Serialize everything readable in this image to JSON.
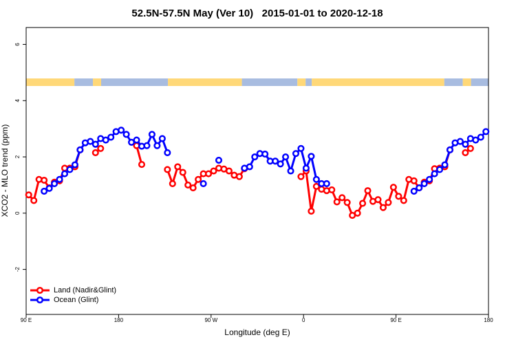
{
  "chart_data": {
    "type": "line",
    "title": "52.5N-57.5N May (Ver 10)   2015-01-01 to 2020-12-18",
    "xlabel": "Longitude (deg E)",
    "ylabel": "XCO2 - MLO trend (ppm)",
    "xlim": [
      90,
      540
    ],
    "ylim": [
      -3.6,
      6.6
    ],
    "xticks": [
      {
        "value": 90,
        "label": "90 E"
      },
      180,
      {
        "value": 270,
        "label": "90 W"
      },
      {
        "value": 360,
        "label": "0"
      },
      {
        "value": 450,
        "label": "90 E"
      },
      {
        "value": 540,
        "label": "180"
      }
    ],
    "yticks": [
      -2,
      0,
      2,
      4,
      6
    ],
    "legend": "bottom-left",
    "x": [
      92.5,
      97.5,
      102.5,
      107.5,
      112.5,
      117.5,
      122.5,
      127.5,
      132.5,
      137.5,
      142.5,
      147.5,
      152.5,
      157.5,
      162.5,
      167.5,
      172.5,
      177.5,
      182.5,
      187.5,
      192.5,
      197.5,
      202.5,
      207.5,
      212.5,
      217.5,
      222.5,
      227.5,
      232.5,
      237.5,
      242.5,
      247.5,
      252.5,
      257.5,
      262.5,
      267.5,
      272.5,
      277.5,
      282.5,
      287.5,
      292.5,
      297.5,
      302.5,
      307.5,
      312.5,
      317.5,
      322.5,
      327.5,
      332.5,
      337.5,
      342.5,
      347.5,
      352.5,
      357.5,
      362.5,
      367.5,
      372.5,
      377.5,
      382.5,
      387.5,
      392.5,
      397.5,
      402.5,
      407.5,
      412.5,
      417.5,
      422.5,
      427.5,
      432.5,
      437.5,
      442.5,
      447.5,
      452.5,
      457.5,
      462.5,
      467.5,
      472.5,
      477.5,
      482.5,
      487.5,
      492.5,
      497.5,
      502.5,
      507.5,
      512.5,
      517.5,
      522.5,
      527.5,
      532.5,
      537.5
    ],
    "series": [
      {
        "name": "Land (Nadir&Glint)",
        "color": "#ff0000",
        "values": [
          0.65,
          0.45,
          1.2,
          1.17,
          0.9,
          1.1,
          1.15,
          1.6,
          1.6,
          1.65,
          2.25,
          null,
          null,
          2.15,
          2.3,
          null,
          null,
          null,
          null,
          null,
          null,
          2.4,
          1.73,
          null,
          null,
          null,
          null,
          1.55,
          1.05,
          1.65,
          1.45,
          1.0,
          0.9,
          1.2,
          1.4,
          1.4,
          1.5,
          1.6,
          1.57,
          1.5,
          1.35,
          1.3,
          1.58,
          null,
          null,
          null,
          null,
          null,
          null,
          null,
          null,
          null,
          null,
          1.3,
          1.5,
          0.07,
          0.95,
          0.85,
          0.8,
          0.83,
          0.4,
          0.55,
          0.38,
          -0.08,
          0.0,
          0.35,
          0.8,
          0.42,
          0.48,
          0.2,
          0.38,
          0.92,
          0.6,
          0.45,
          1.2,
          1.15,
          0.9,
          1.1,
          1.15,
          1.58,
          1.6,
          1.65,
          2.25,
          null,
          null,
          2.15,
          2.3,
          null,
          null,
          null
        ]
      },
      {
        "name": "Ocean (Glint)",
        "color": "#0000ff",
        "values": [
          null,
          null,
          null,
          0.78,
          0.88,
          1.05,
          1.2,
          1.4,
          1.55,
          1.72,
          2.25,
          2.5,
          2.55,
          2.45,
          2.65,
          2.6,
          2.7,
          2.9,
          2.95,
          2.8,
          2.52,
          2.6,
          2.38,
          2.4,
          2.8,
          2.4,
          2.65,
          2.15,
          null,
          null,
          null,
          null,
          null,
          null,
          1.05,
          null,
          null,
          1.88,
          null,
          null,
          null,
          null,
          1.6,
          1.65,
          2.0,
          2.12,
          2.1,
          1.85,
          1.85,
          1.75,
          2.0,
          1.5,
          2.12,
          2.3,
          1.6,
          2.02,
          1.2,
          1.05,
          1.05,
          null,
          null,
          null,
          null,
          null,
          null,
          null,
          null,
          null,
          null,
          null,
          null,
          null,
          null,
          null,
          null,
          0.78,
          0.9,
          1.05,
          1.2,
          1.4,
          1.55,
          1.72,
          2.25,
          2.5,
          2.55,
          2.45,
          2.65,
          2.6,
          2.7,
          2.9
        ]
      }
    ]
  }
}
